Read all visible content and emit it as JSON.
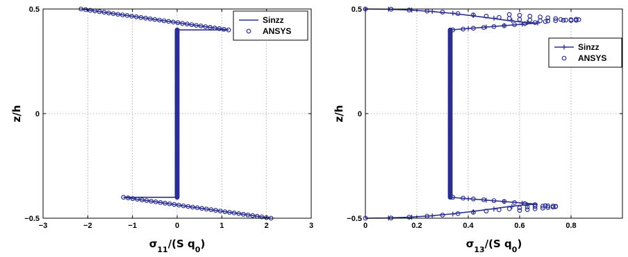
{
  "chart_data": [
    {
      "type": "line",
      "xlabel": "σ11/(S q0)",
      "xlabel_parts": {
        "base": "σ",
        "sub1": "11",
        "mid": "/(S q",
        "sub2": "0",
        "end": ")"
      },
      "ylabel": "z/h",
      "xlim": [
        -3,
        3
      ],
      "ylim": [
        -0.5,
        0.5
      ],
      "xticks": [
        -3,
        -2,
        -1,
        0,
        1,
        2,
        3
      ],
      "xtick_labels": [
        "−3",
        "−2",
        "−1",
        "0",
        "1",
        "2",
        "3"
      ],
      "yticks": [
        -0.5,
        0,
        0.5
      ],
      "ytick_labels": [
        "−0.5",
        "0",
        "0.5"
      ],
      "grid": true,
      "legend": {
        "placement": "top-right",
        "entries": [
          "Sinzz",
          "ANSYS"
        ]
      },
      "series": [
        {
          "name": "Sinzz",
          "style": "line",
          "x": [
            -2.15,
            1.15,
            0,
            0,
            0,
            -1.2,
            2.1
          ],
          "y": [
            0.5,
            0.4,
            0.4,
            0.0,
            -0.4,
            -0.4,
            -0.5
          ]
        },
        {
          "name": "ANSYS",
          "style": "circles",
          "segments": [
            {
              "from": [
                -2.15,
                0.5
              ],
              "to": [
                1.15,
                0.4
              ],
              "count": 33
            },
            {
              "from": [
                0,
                0.4
              ],
              "to": [
                0,
                -0.4
              ],
              "count": 240
            },
            {
              "from": [
                -1.2,
                -0.4
              ],
              "to": [
                2.1,
                -0.5
              ],
              "count": 33
            }
          ]
        }
      ],
      "color": "#2b2f8f"
    },
    {
      "type": "line",
      "xlabel": "σ13/(S q0)",
      "xlabel_parts": {
        "base": "σ",
        "sub1": "13",
        "mid": "/(S q",
        "sub2": "0",
        "end": ")"
      },
      "ylabel": "z/h",
      "xlim": [
        0,
        1
      ],
      "ylim": [
        -0.5,
        0.5
      ],
      "xticks": [
        0,
        0.2,
        0.4,
        0.6,
        0.8
      ],
      "xtick_labels": [
        "0",
        "0.2",
        "0.4",
        "0.6",
        "0.8"
      ],
      "yticks": [
        -0.5,
        0,
        0.5
      ],
      "ytick_labels": [
        "−0.5",
        "0",
        "0.5"
      ],
      "grid": true,
      "legend": {
        "placement": "upper-right",
        "entries": [
          "Sinzz",
          "ANSYS"
        ]
      },
      "series": [
        {
          "name": "Sinzz",
          "style": "line-plus",
          "x": [
            0,
            0.08,
            0.17,
            0.25,
            0.33,
            0.41,
            0.49,
            0.56,
            0.62,
            0.67,
            0.33,
            0.33,
            0.33,
            0.67,
            0.62,
            0.56,
            0.49,
            0.41,
            0.33,
            0.25,
            0.17,
            0.08,
            0
          ],
          "y": [
            0.5,
            0.499,
            0.495,
            0.489,
            0.48,
            0.469,
            0.456,
            0.444,
            0.436,
            0.433,
            0.4,
            0.0,
            -0.4,
            -0.433,
            -0.436,
            -0.444,
            -0.456,
            -0.469,
            -0.48,
            -0.489,
            -0.495,
            -0.499,
            -0.5
          ],
          "markers": [
            [
              0,
              0.5
            ],
            [
              0.09,
              0.499
            ],
            [
              0.18,
              0.495
            ],
            [
              0.26,
              0.489
            ],
            [
              0.34,
              0.48
            ],
            [
              0.42,
              0.469
            ],
            [
              0.5,
              0.456
            ],
            [
              0.57,
              0.444
            ],
            [
              0.63,
              0.436
            ],
            [
              0.67,
              0.433
            ],
            [
              0.4,
              0.407
            ],
            [
              0.47,
              0.414
            ],
            [
              0.54,
              0.421
            ],
            [
              0.61,
              0.428
            ],
            [
              0.4,
              -0.407
            ],
            [
              0.47,
              -0.414
            ],
            [
              0.54,
              -0.421
            ],
            [
              0.61,
              -0.428
            ],
            [
              0.09,
              -0.499
            ],
            [
              0.18,
              -0.495
            ],
            [
              0.26,
              -0.489
            ],
            [
              0.34,
              -0.48
            ],
            [
              0.42,
              -0.469
            ],
            [
              0.5,
              -0.456
            ],
            [
              0.57,
              -0.444
            ],
            [
              0.63,
              -0.436
            ]
          ]
        },
        {
          "name": "ANSYS",
          "style": "circles",
          "points": [
            [
              0,
              0.5
            ],
            [
              0.1,
              0.499
            ],
            [
              0.17,
              0.495
            ],
            [
              0.24,
              0.49
            ],
            [
              0.3,
              0.485
            ],
            [
              0.36,
              0.478
            ],
            [
              0.42,
              0.472
            ],
            [
              0.47,
              0.466
            ],
            [
              0.52,
              0.46
            ],
            [
              0.56,
              0.455
            ],
            [
              0.6,
              0.45
            ],
            [
              0.64,
              0.447
            ],
            [
              0.68,
              0.444
            ],
            [
              0.71,
              0.443
            ],
            [
              0.74,
              0.444
            ],
            [
              0.77,
              0.446
            ],
            [
              0.8,
              0.449
            ],
            [
              0.82,
              0.451
            ],
            [
              0.83,
              0.449
            ],
            [
              0.82,
              0.446
            ],
            [
              0.8,
              0.445
            ],
            [
              0.78,
              0.447
            ],
            [
              0.76,
              0.45
            ],
            [
              0.74,
              0.454
            ],
            [
              0.71,
              0.458
            ],
            [
              0.68,
              0.462
            ],
            [
              0.64,
              0.466
            ],
            [
              0.6,
              0.47
            ],
            [
              0.56,
              0.474
            ],
            [
              0.34,
              0.4
            ],
            [
              0.38,
              0.404
            ],
            [
              0.42,
              0.408
            ],
            [
              0.46,
              0.412
            ],
            [
              0.5,
              0.416
            ],
            [
              0.54,
              0.42
            ],
            [
              0.58,
              0.425
            ],
            [
              0.62,
              0.43
            ],
            [
              0.66,
              0.435
            ],
            [
              0.7,
              0.44
            ],
            [
              0,
              -0.5
            ],
            [
              0.1,
              -0.499
            ],
            [
              0.17,
              -0.495
            ],
            [
              0.24,
              -0.49
            ],
            [
              0.3,
              -0.485
            ],
            [
              0.36,
              -0.478
            ],
            [
              0.42,
              -0.472
            ],
            [
              0.47,
              -0.466
            ],
            [
              0.52,
              -0.46
            ],
            [
              0.56,
              -0.455
            ],
            [
              0.6,
              -0.45
            ],
            [
              0.63,
              -0.447
            ],
            [
              0.66,
              -0.444
            ],
            [
              0.69,
              -0.442
            ],
            [
              0.71,
              -0.441
            ],
            [
              0.73,
              -0.442
            ],
            [
              0.74,
              -0.443
            ],
            [
              0.74,
              -0.445
            ],
            [
              0.73,
              -0.447
            ],
            [
              0.71,
              -0.449
            ],
            [
              0.69,
              -0.452
            ],
            [
              0.66,
              -0.455
            ],
            [
              0.63,
              -0.459
            ],
            [
              0.6,
              -0.463
            ],
            [
              0.34,
              -0.4
            ],
            [
              0.38,
              -0.404
            ],
            [
              0.42,
              -0.408
            ],
            [
              0.46,
              -0.412
            ],
            [
              0.5,
              -0.416
            ],
            [
              0.54,
              -0.42
            ],
            [
              0.58,
              -0.425
            ],
            [
              0.62,
              -0.43
            ],
            [
              0.66,
              -0.435
            ],
            [
              0.7,
              -0.44
            ]
          ],
          "vertical": {
            "x": 0.33,
            "from": 0.4,
            "to": -0.4,
            "count": 240
          }
        }
      ],
      "color": "#2b2f8f"
    }
  ]
}
